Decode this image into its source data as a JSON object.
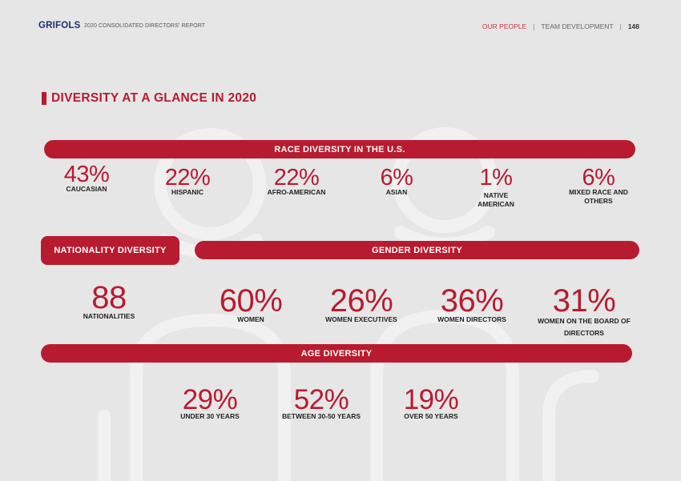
{
  "header": {
    "logo": "GRIFOLS",
    "report_title": "2020 CONSOLIDATED DIRECTORS' REPORT",
    "nav_active": "OUR PEOPLE",
    "nav_section": "TEAM DEVELOPMENT",
    "page_number": "148",
    "separator": "|"
  },
  "title": "DIVERSITY AT A GLANCE IN 2020",
  "race": {
    "heading": "RACE DIVERSITY IN THE U.S.",
    "items": [
      {
        "value": "43%",
        "label": "CAUCASIAN"
      },
      {
        "value": "22%",
        "label": "HISPANIC"
      },
      {
        "value": "22%",
        "label": "AFRO-AMERICAN"
      },
      {
        "value": "6%",
        "label": "ASIAN"
      },
      {
        "value": "1%",
        "label": "NATIVE AMERICAN"
      },
      {
        "value": "6%",
        "label": "MIXED RACE AND OTHERS"
      }
    ]
  },
  "nationality": {
    "heading": "NATIONALITY DIVERSITY",
    "value": "88",
    "label": "NATIONALITIES"
  },
  "gender": {
    "heading": "GENDER DIVERSITY",
    "items": [
      {
        "value": "60%",
        "label": "WOMEN"
      },
      {
        "value": "26%",
        "label": "WOMEN EXECUTIVES"
      },
      {
        "value": "36%",
        "label": "WOMEN DIRECTORS"
      },
      {
        "value": "31%",
        "label": "WOMEN ON THE BOARD OF DIRECTORS"
      }
    ]
  },
  "age": {
    "heading": "AGE DIVERSITY",
    "items": [
      {
        "value": "29%",
        "label": "UNDER 30 YEARS"
      },
      {
        "value": "52%",
        "label": "BETWEEN 30-50 YEARS"
      },
      {
        "value": "19%",
        "label": "OVER 50 YEARS"
      }
    ]
  },
  "colors": {
    "accent": "#b81b2f",
    "background": "#e6e6e7",
    "logo": "#1c2f6b"
  }
}
